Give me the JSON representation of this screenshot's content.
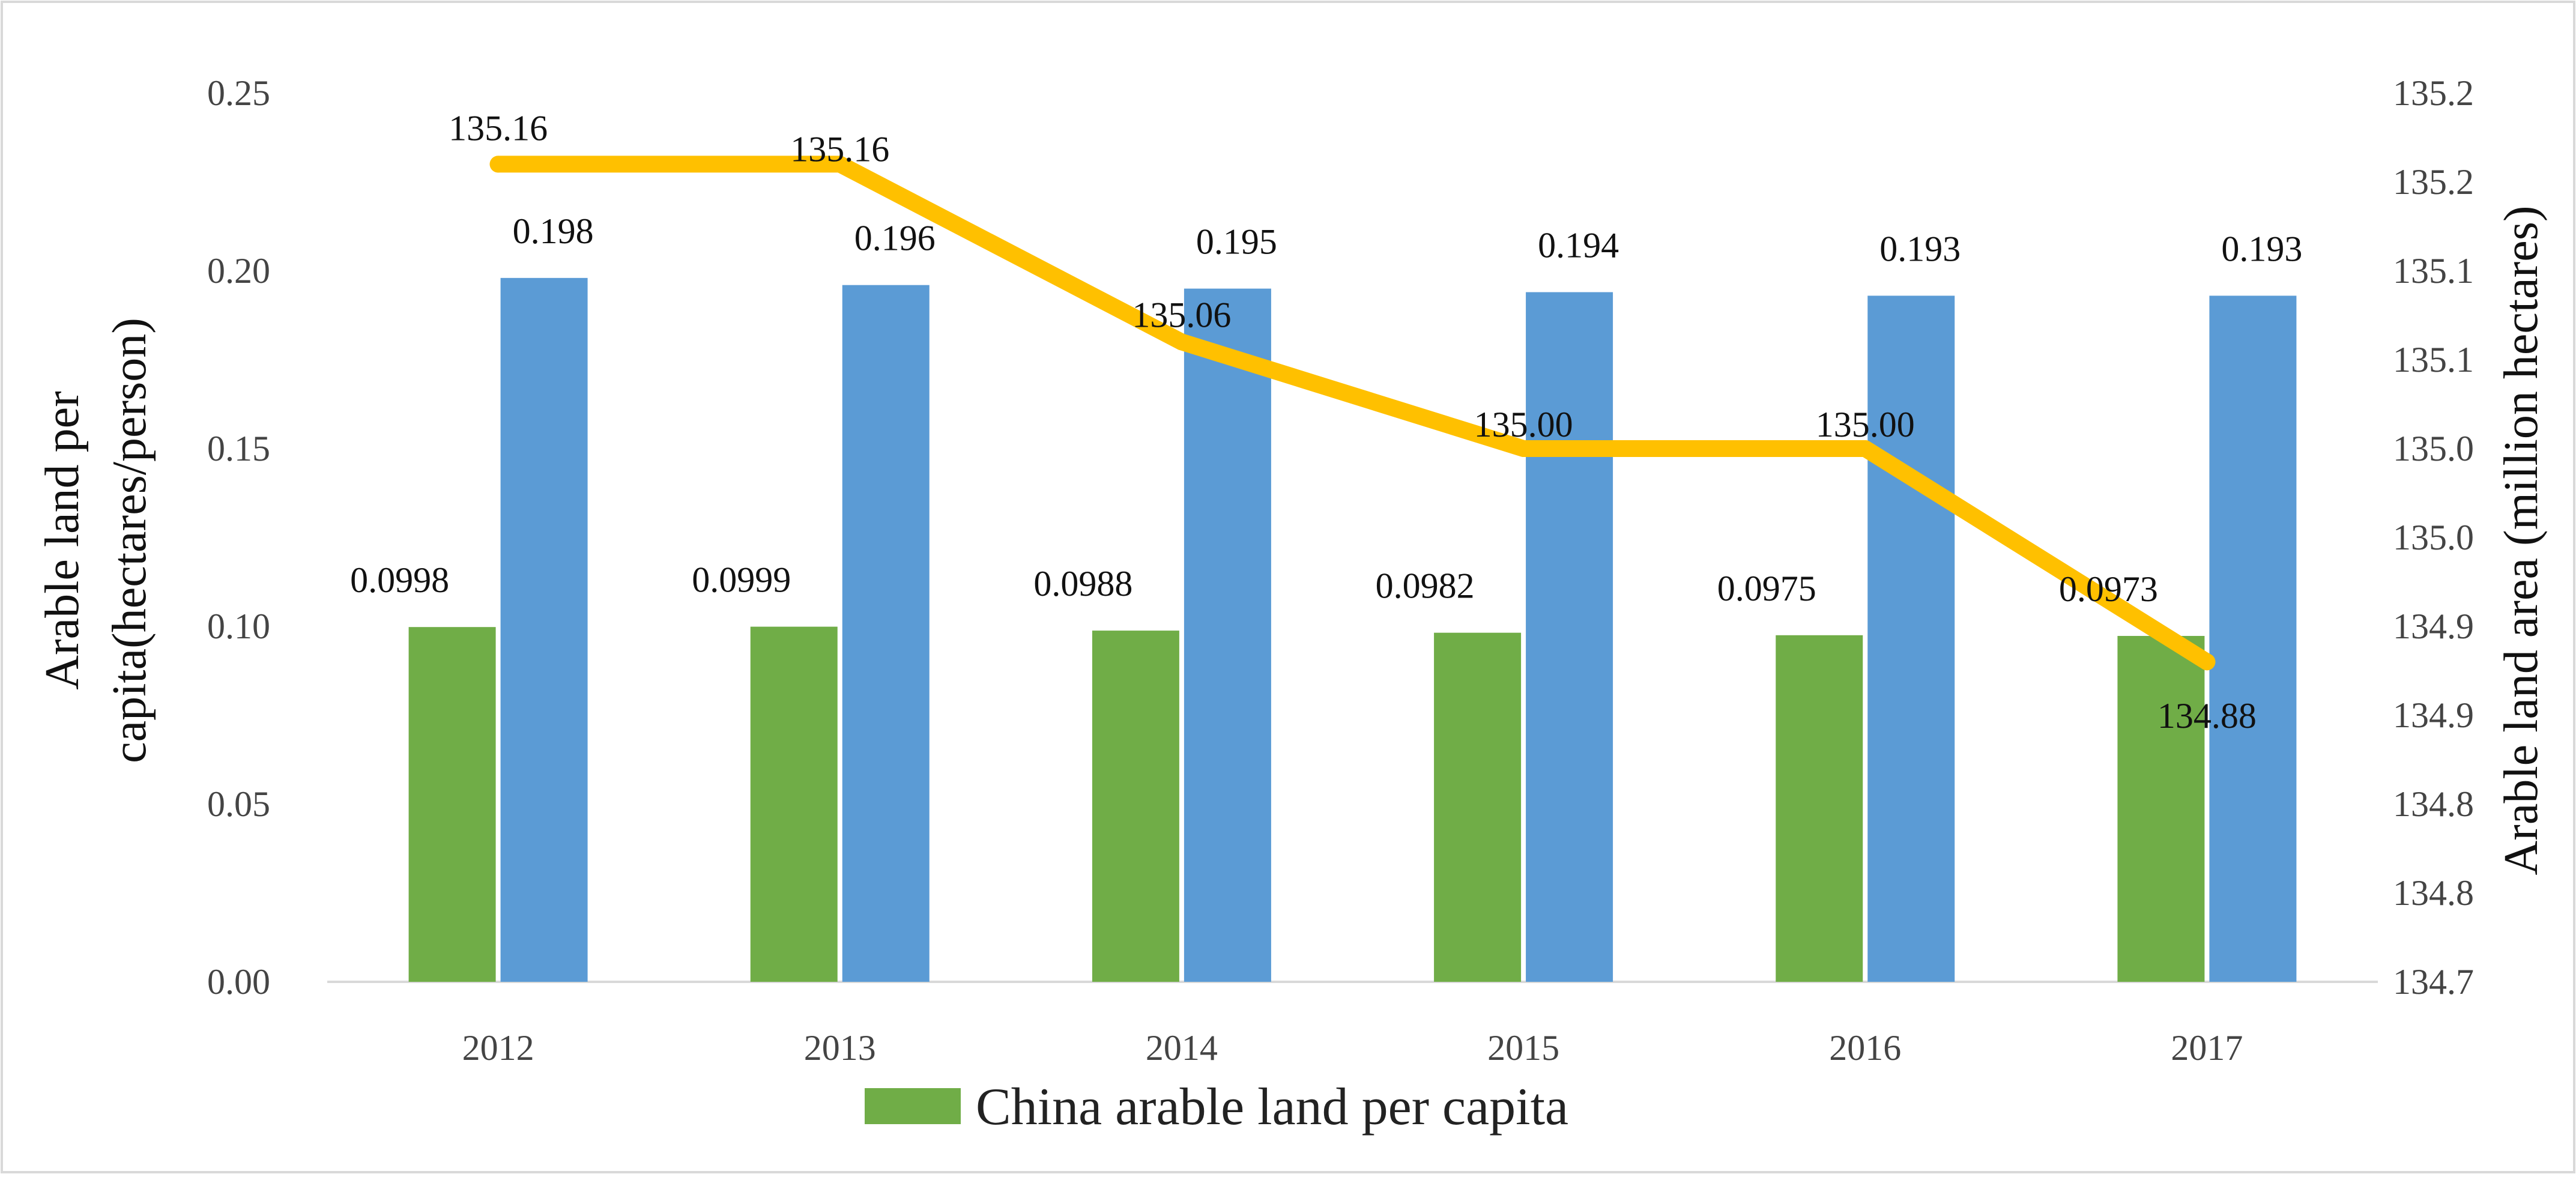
{
  "chart_data": {
    "type": "bar",
    "title": "",
    "categories": [
      "2012",
      "2013",
      "2014",
      "2015",
      "2016",
      "2017"
    ],
    "series": [
      {
        "name": "China arable land per capita",
        "kind": "bar",
        "axis": "left",
        "color": "#70AD47",
        "values": [
          0.0998,
          0.0999,
          0.0988,
          0.0982,
          0.0975,
          0.0973
        ],
        "labels": [
          "0.0998",
          "0.0999",
          "0.0988",
          "0.0982",
          "0.0975",
          "0.0973"
        ]
      },
      {
        "name": "",
        "kind": "bar",
        "axis": "left",
        "color": "#5B9BD5",
        "values": [
          0.198,
          0.196,
          0.195,
          0.194,
          0.193,
          0.193
        ],
        "labels": [
          "0.198",
          "0.196",
          "0.195",
          "0.194",
          "0.193",
          "0.193"
        ]
      },
      {
        "name": "",
        "kind": "line",
        "axis": "right",
        "color": "#FFC000",
        "values": [
          135.16,
          135.16,
          135.06,
          135.0,
          135.0,
          134.88
        ],
        "labels": [
          "135.16",
          "135.16",
          "135.06",
          "135.00",
          "135.00",
          "134.88"
        ]
      }
    ],
    "ylabel": "Arable land per capita(hectares/person)",
    "ylabel_lines": [
      "Arable land per",
      "capita(hectares/person)"
    ],
    "ylim": [
      0,
      0.25
    ],
    "yticks": [
      "0.00",
      "0.05",
      "0.10",
      "0.15",
      "0.20",
      "0.25"
    ],
    "y2label": "Arable land area (million hectares)",
    "y2lim": [
      134.7,
      135.2
    ],
    "y2ticks": [
      "134.7",
      "134.8",
      "134.8",
      "134.9",
      "134.9",
      "135.0",
      "135.0",
      "135.1",
      "135.1",
      "135.2",
      "135.2"
    ],
    "legend": {
      "position": "bottom",
      "entries": [
        "China arable land per capita"
      ]
    },
    "grid": false
  }
}
